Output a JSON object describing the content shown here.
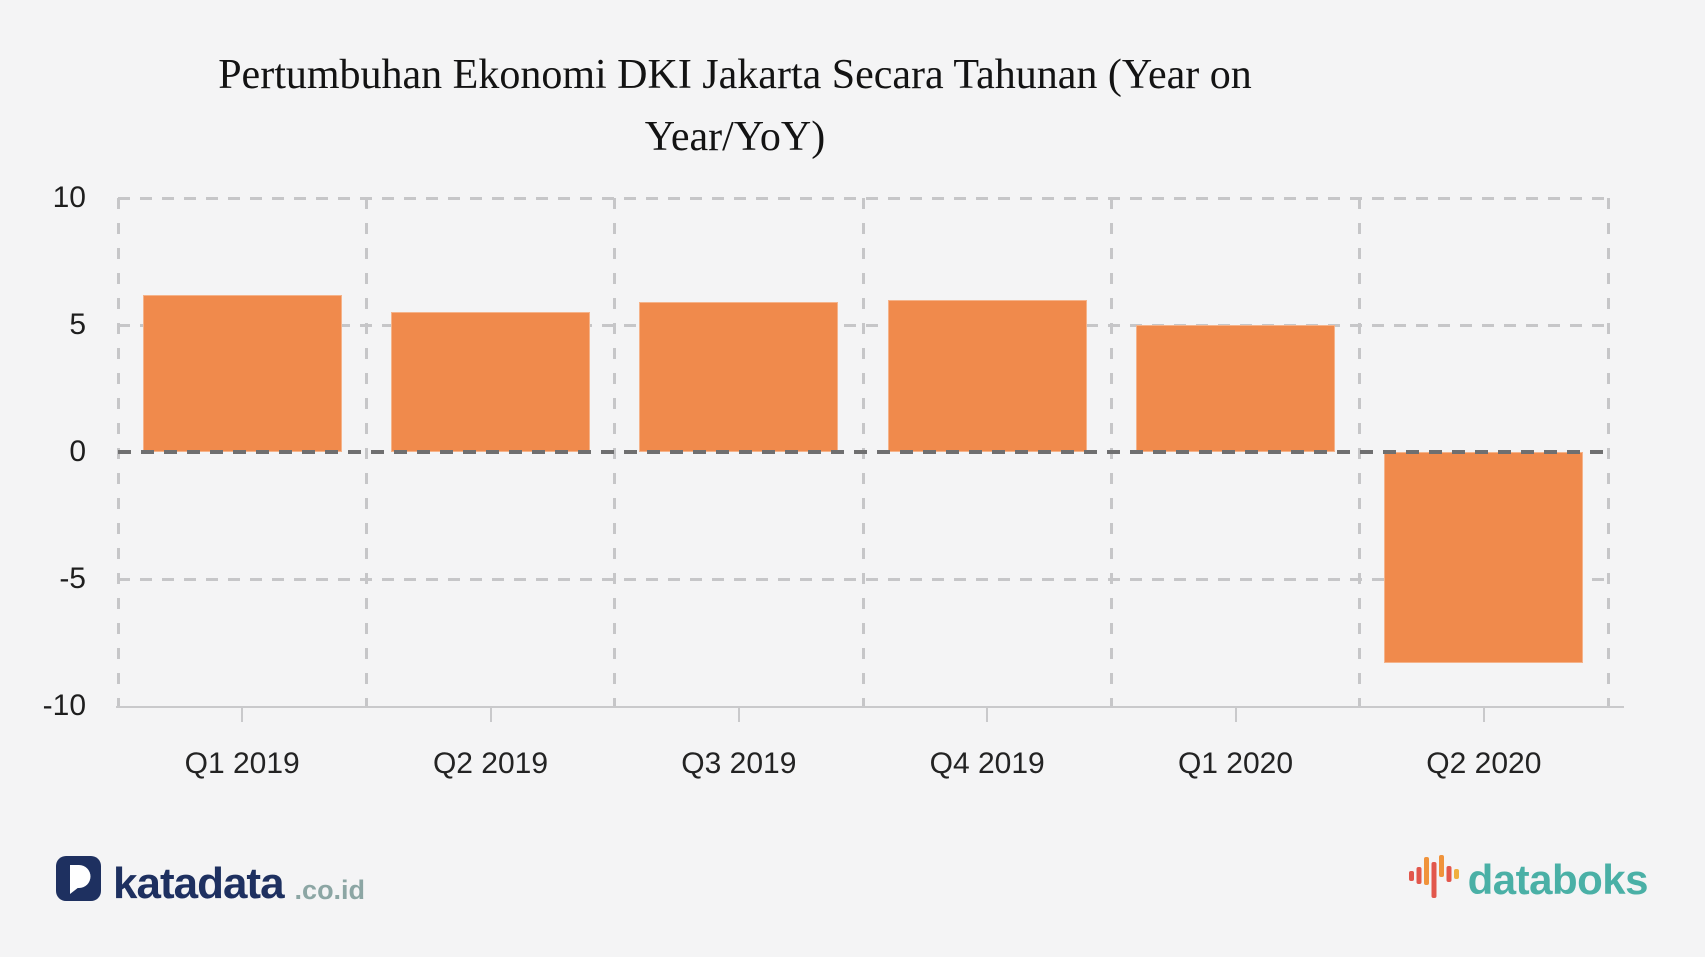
{
  "header": {
    "title_line1": "Pertumbuhan Ekonomi DKI Jakarta Secara Tahunan (Year on",
    "title_line2": "Year/YoY)"
  },
  "chart_data": {
    "type": "bar",
    "title": "Pertumbuhan Ekonomi DKI Jakarta Secara Tahunan (Year on Year/YoY)",
    "categories": [
      "Q1 2019",
      "Q2 2019",
      "Q3 2019",
      "Q4 2019",
      "Q1 2020",
      "Q2 2020"
    ],
    "values": [
      6.2,
      5.5,
      5.9,
      6.0,
      5.0,
      -8.3
    ],
    "unit": "percent",
    "xlabel": "",
    "ylabel": "",
    "ylim": [
      -10,
      10
    ],
    "yticks": [
      10,
      5,
      0,
      -5,
      -10
    ],
    "grid": "dashed",
    "legend": "none",
    "bar_color": "#F08A4C",
    "grid_color": "#C6C6C8",
    "zero_line_color": "#6F6F70",
    "background_color": "#F4F4F5"
  },
  "footer": {
    "katadata_text": "katadata",
    "katadata_suffix": ".co.id",
    "databoks_text": "databoks",
    "brand_colors": {
      "katadata_navy": "#1E3060",
      "katadata_suffix_gray": "#8CA6A4",
      "databoks_teal": "#4AB0A6",
      "databoks_icon_red": "#E2574C",
      "databoks_icon_orange": "#F0933B",
      "databoks_icon_amber": "#EFAF3F"
    }
  }
}
